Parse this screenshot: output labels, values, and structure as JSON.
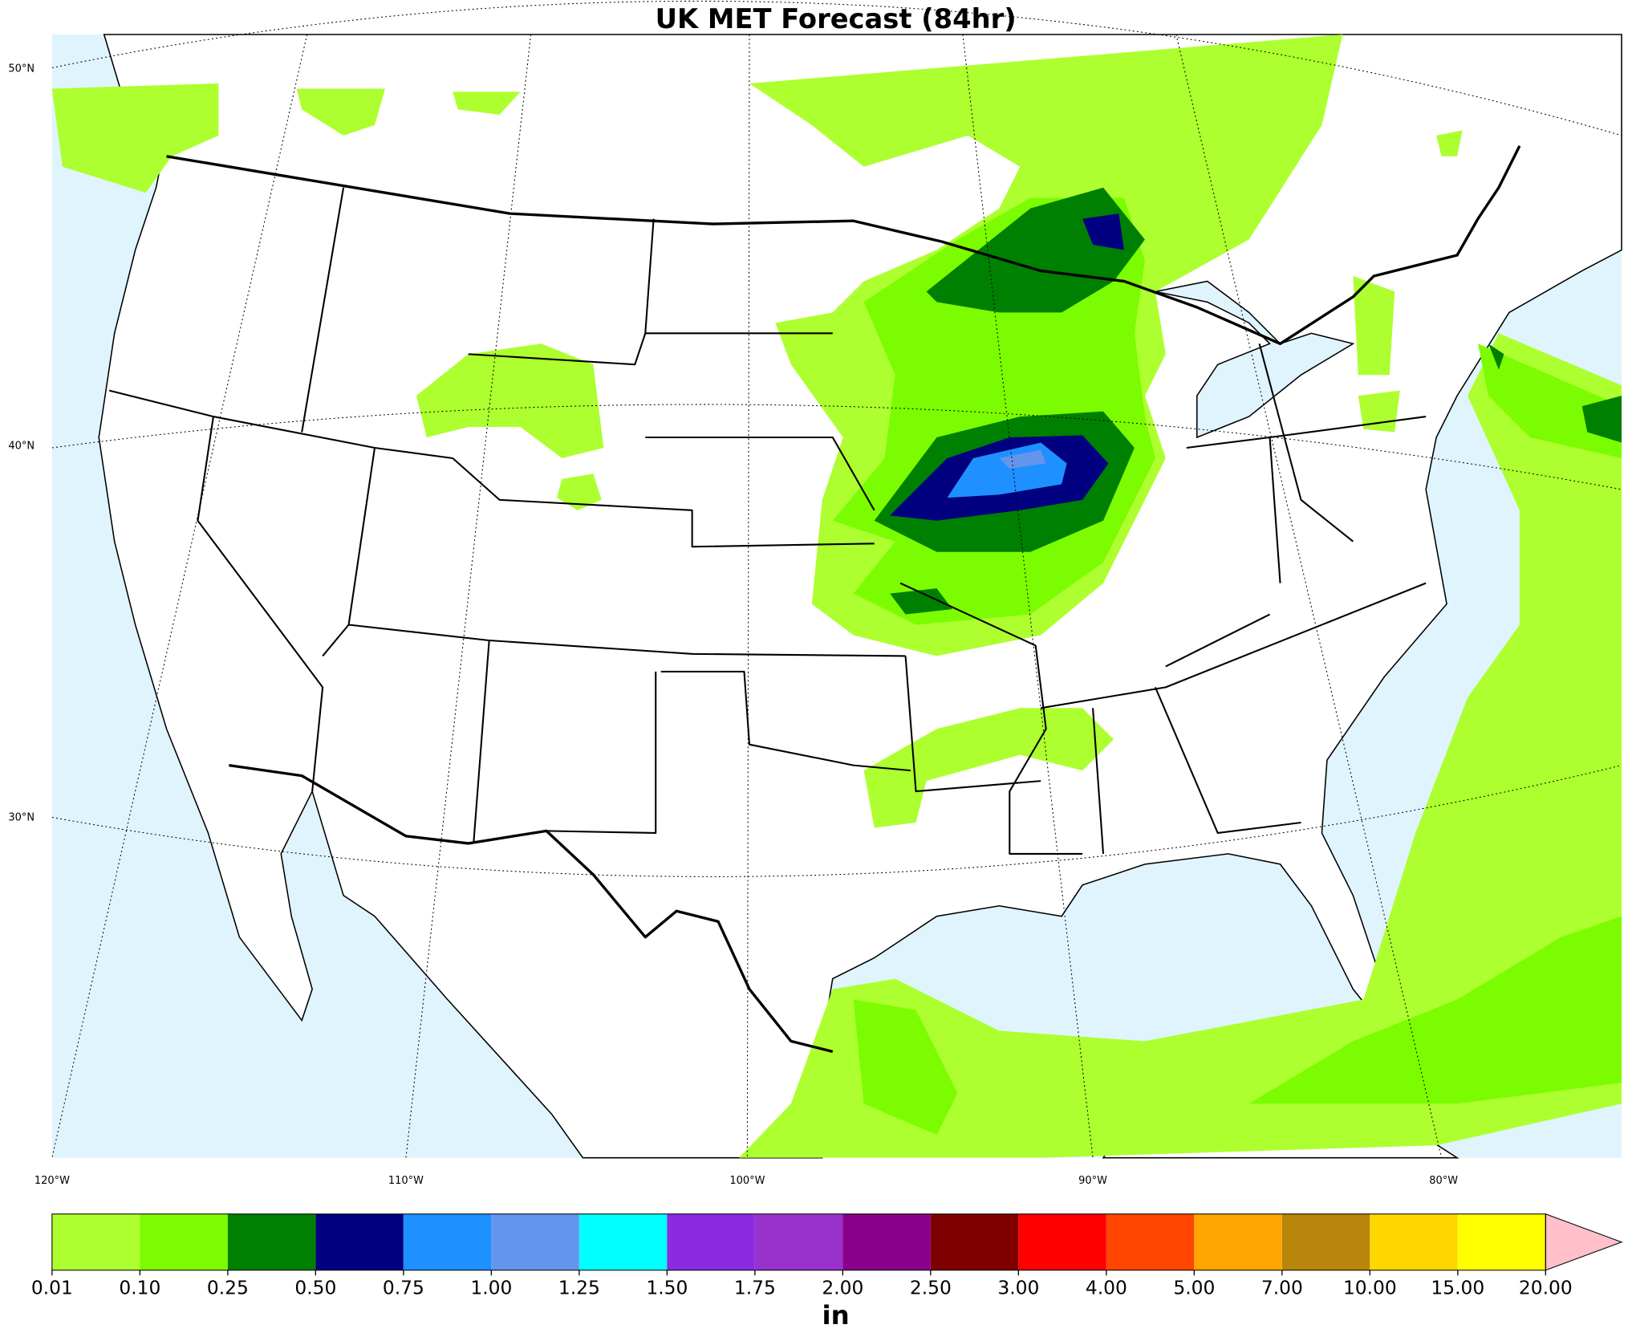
{
  "title": "UK MET Forecast (84hr)",
  "map": {
    "lat_labels": [
      "50°N",
      "40°N",
      "30°N"
    ],
    "lon_labels": [
      "120°W",
      "110°W",
      "100°W",
      "90°W",
      "80°W"
    ]
  },
  "colorbar": {
    "bounds": [
      {
        "value": 0.01,
        "label": "0.01"
      },
      {
        "value": 0.1,
        "label": "0.10"
      },
      {
        "value": 0.25,
        "label": "0.25"
      },
      {
        "value": 0.5,
        "label": "0.50"
      },
      {
        "value": 0.75,
        "label": "0.75"
      },
      {
        "value": 1,
        "label": "1.00"
      },
      {
        "value": 1.25,
        "label": "1.25"
      },
      {
        "value": 1.5,
        "label": "1.50"
      },
      {
        "value": 1.75,
        "label": "1.75"
      },
      {
        "value": 2,
        "label": "2.00"
      },
      {
        "value": 2.5,
        "label": "2.50"
      },
      {
        "value": 3,
        "label": "3.00"
      },
      {
        "value": 4,
        "label": "4.00"
      },
      {
        "value": 5,
        "label": "5.00"
      },
      {
        "value": 7,
        "label": "7.00"
      },
      {
        "value": 10,
        "label": "10.00"
      },
      {
        "value": 15,
        "label": "15.00"
      },
      {
        "value": 20,
        "label": "20.00"
      }
    ],
    "colors": [
      "#adff2f",
      "#7cfc00",
      "#008000",
      "#000080",
      "#1e90ff",
      "#6495ed",
      "#00ffff",
      "#8a2be2",
      "#9932cc",
      "#8b008b",
      "#800000",
      "#ff0000",
      "#ff4500",
      "#ffa500",
      "#b8860b",
      "#ffd700",
      "#ffff00"
    ],
    "extend_color": "#ffc0cb",
    "unit": "in"
  }
}
